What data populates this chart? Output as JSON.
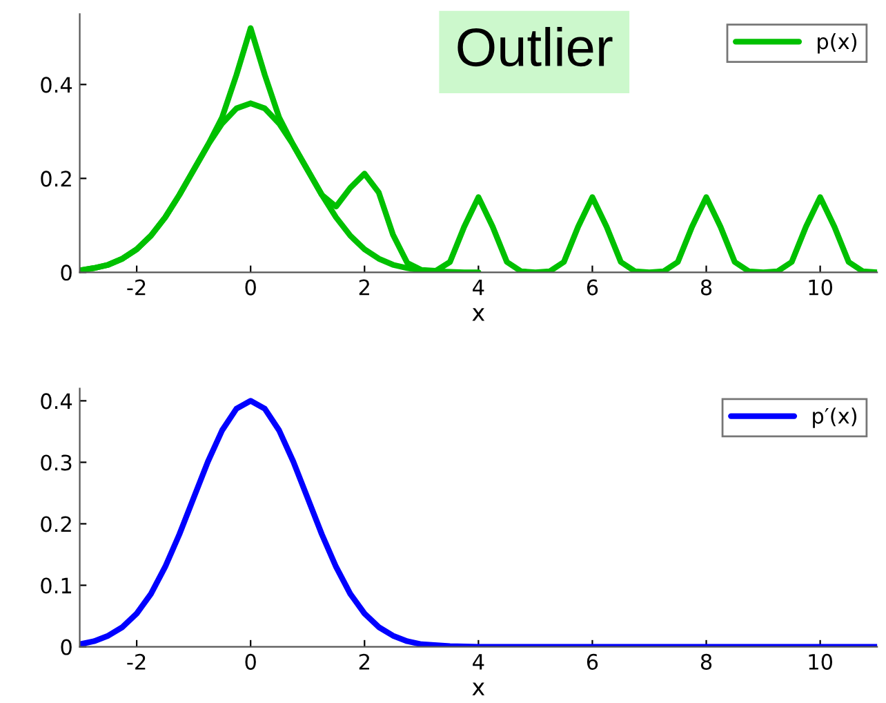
{
  "chart_data": [
    {
      "type": "line",
      "xlabel": "x",
      "annotations": [
        "Outlier"
      ],
      "xlim": [
        -3,
        11
      ],
      "ylim": [
        0,
        0.55
      ],
      "xticks": [
        -2,
        0,
        2,
        4,
        6,
        8,
        10
      ],
      "yticks": [
        0,
        0.2,
        0.4
      ],
      "legend": "top right",
      "grid": false,
      "series": [
        {
          "name": "p(x)",
          "color": "#00c000",
          "x": [
            -3,
            -2.75,
            -2.5,
            -2.25,
            -2,
            -1.75,
            -1.5,
            -1.25,
            -1,
            -0.75,
            -0.5,
            -0.25,
            0,
            0.25,
            0.5,
            0.75,
            1,
            1.25,
            1.5,
            1.75,
            2,
            2.25,
            2.5,
            2.75,
            3,
            3.25,
            3.5,
            3.75,
            4,
            4.25,
            4.5,
            4.75,
            5,
            5.25,
            5.5,
            5.75,
            6,
            6.25,
            6.5,
            6.75,
            7,
            7.25,
            7.5,
            7.75,
            8,
            8.25,
            8.5,
            8.75,
            9,
            9.25,
            9.5,
            9.75,
            10,
            10.25,
            10.5,
            10.75,
            11
          ],
          "values": [
            0.004,
            0.009,
            0.016,
            0.029,
            0.049,
            0.078,
            0.117,
            0.165,
            0.218,
            0.271,
            0.33,
            0.42,
            0.52,
            0.42,
            0.33,
            0.271,
            0.218,
            0.165,
            0.14,
            0.18,
            0.21,
            0.17,
            0.08,
            0.02,
            0.005,
            0.003,
            0.022,
            0.097,
            0.16,
            0.097,
            0.022,
            0.002,
            0,
            0.002,
            0.022,
            0.097,
            0.16,
            0.097,
            0.022,
            0.002,
            0,
            0.002,
            0.022,
            0.097,
            0.16,
            0.097,
            0.022,
            0.002,
            0,
            0.002,
            0.022,
            0.097,
            0.16,
            0.097,
            0.022,
            0.002,
            0
          ]
        },
        {
          "color": "#00c000",
          "x": [
            -3,
            -2.75,
            -2.5,
            -2.25,
            -2,
            -1.75,
            -1.5,
            -1.25,
            -1,
            -0.75,
            -0.5,
            -0.25,
            0,
            0.25,
            0.5,
            0.75,
            1,
            1.25,
            1.5,
            1.75,
            2,
            2.25,
            2.5,
            2.75,
            3,
            3.25,
            3.5,
            3.75,
            4
          ],
          "values": [
            0.004,
            0.009,
            0.016,
            0.029,
            0.049,
            0.078,
            0.117,
            0.165,
            0.218,
            0.271,
            0.317,
            0.349,
            0.36,
            0.349,
            0.317,
            0.271,
            0.218,
            0.165,
            0.117,
            0.078,
            0.049,
            0.029,
            0.016,
            0.009,
            0.004,
            0.002,
            0.001,
            0,
            0
          ]
        }
      ]
    },
    {
      "type": "line",
      "xlabel": "x",
      "xlim": [
        -3,
        11
      ],
      "ylim": [
        0,
        0.42
      ],
      "xticks": [
        -2,
        0,
        2,
        4,
        6,
        8,
        10
      ],
      "yticks": [
        0,
        0.1,
        0.2,
        0.3,
        0.4
      ],
      "legend": "top right",
      "grid": false,
      "series": [
        {
          "name": "p′(x)",
          "color": "#0000ff",
          "x": [
            -3,
            -2.75,
            -2.5,
            -2.25,
            -2,
            -1.75,
            -1.5,
            -1.25,
            -1,
            -0.75,
            -0.5,
            -0.25,
            0,
            0.25,
            0.5,
            0.75,
            1,
            1.25,
            1.5,
            1.75,
            2,
            2.25,
            2.5,
            2.75,
            3,
            3.5,
            4,
            6,
            8,
            10,
            11
          ],
          "values": [
            0.004,
            0.009,
            0.018,
            0.032,
            0.054,
            0.086,
            0.13,
            0.183,
            0.242,
            0.301,
            0.352,
            0.387,
            0.4,
            0.387,
            0.352,
            0.301,
            0.242,
            0.183,
            0.13,
            0.086,
            0.054,
            0.032,
            0.018,
            0.009,
            0.004,
            0.001,
            0,
            0,
            0,
            0,
            0
          ]
        }
      ]
    }
  ]
}
